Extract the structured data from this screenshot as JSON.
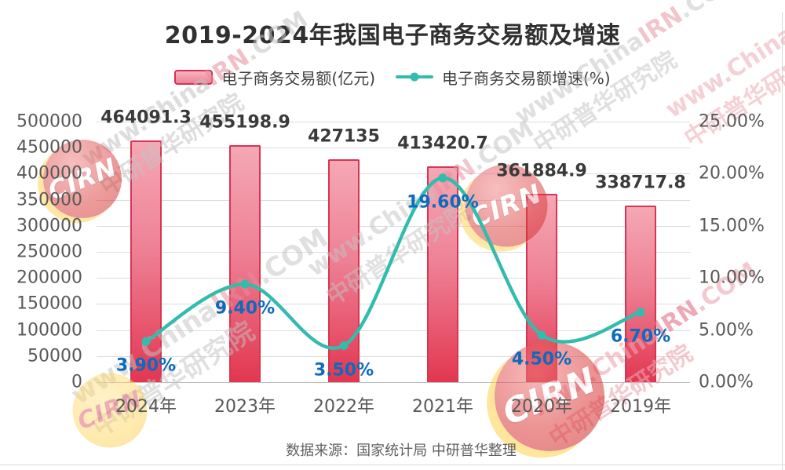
{
  "title": "2019-2024年我国电子商务交易额及增速",
  "legend": [
    {
      "label": "电子商务交易额(亿元)",
      "type": "bar",
      "color": "#e84a66"
    },
    {
      "label": "电子商务交易额增速(%)",
      "type": "line",
      "color": "#31bcad"
    }
  ],
  "source_note": "数据来源：国家统计局 中研普华整理",
  "colors": {
    "bar_fill_top": "#f5a8b4",
    "bar_fill_bottom": "#e23750",
    "bar_border": "#d93552",
    "line": "#31bcad",
    "value_label": "#3a3a3a",
    "growth_label": "#0d6bbd",
    "axis_text": "#595959",
    "gridline": "#dcdcdc"
  },
  "watermark": {
    "url_prefix": "www.China",
    "url_mid": "IRN",
    "url_suffix": ".COM",
    "brand_text": "中研普华研究院",
    "logo_text": "CIRN"
  },
  "chart_data": {
    "type": "bar+line",
    "categories": [
      "2024年",
      "2023年",
      "2022年",
      "2021年",
      "2020年",
      "2019年"
    ],
    "series": [
      {
        "name": "电子商务交易额(亿元)",
        "type": "bar",
        "axis": "left",
        "values": [
          464091.3,
          455198.9,
          427135,
          413420.7,
          361884.9,
          338717.8
        ],
        "labels": [
          "464091.3",
          "455198.9",
          "427135",
          "413420.7",
          "361884.9",
          "338717.8"
        ]
      },
      {
        "name": "电子商务交易额增速(%)",
        "type": "line",
        "axis": "right",
        "values": [
          3.9,
          9.4,
          3.5,
          19.6,
          4.5,
          6.7
        ],
        "labels": [
          "3.90%",
          "9.40%",
          "3.50%",
          "19.60%",
          "4.50%",
          "6.70%"
        ]
      }
    ],
    "left_axis": {
      "min": 0,
      "max": 500000,
      "step": 50000,
      "tick_labels": [
        "500000",
        "450000",
        "400000",
        "350000",
        "300000",
        "250000",
        "200000",
        "150000",
        "100000",
        "50000",
        "0"
      ]
    },
    "right_axis": {
      "min": 0,
      "max": 25,
      "step": 5,
      "tick_labels": [
        "25.00%",
        "20.00%",
        "15.00%",
        "10.00%",
        "5.00%",
        "0.00%"
      ]
    },
    "grid": true,
    "legend_position": "top"
  }
}
